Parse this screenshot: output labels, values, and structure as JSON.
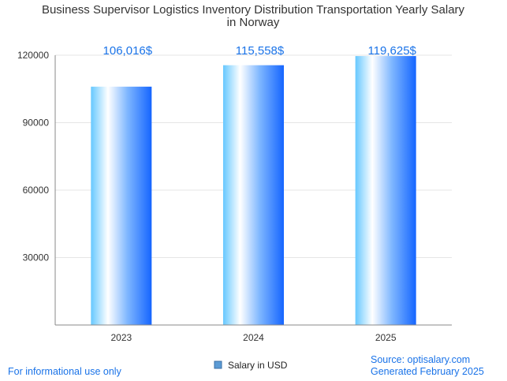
{
  "chart_data": {
    "type": "bar",
    "title": [
      "Business Supervisor Logistics Inventory Distribution Transportation Yearly Salary",
      "in Norway"
    ],
    "categories": [
      "2023",
      "2024",
      "2025"
    ],
    "series": [
      {
        "name": "Salary in USD",
        "values": [
          106016,
          115558,
          119625
        ],
        "value_labels": [
          "106,016$",
          "115,558$",
          "119,625$"
        ]
      }
    ],
    "yticks": [
      "30000",
      "60000",
      "90000",
      "120000"
    ],
    "ylim": [
      0,
      120000
    ],
    "grid": true,
    "legend": "bottom-center"
  },
  "footer": {
    "left_note": "For informational use only",
    "source": "Source: optisalary.com",
    "generated": "Generated February 2025"
  },
  "colors": {
    "bar_light": "#d9f3ff",
    "bar_mid": "#66c8ff",
    "bar_dark": "#1565ff",
    "label_blue": "#1a73e8"
  }
}
